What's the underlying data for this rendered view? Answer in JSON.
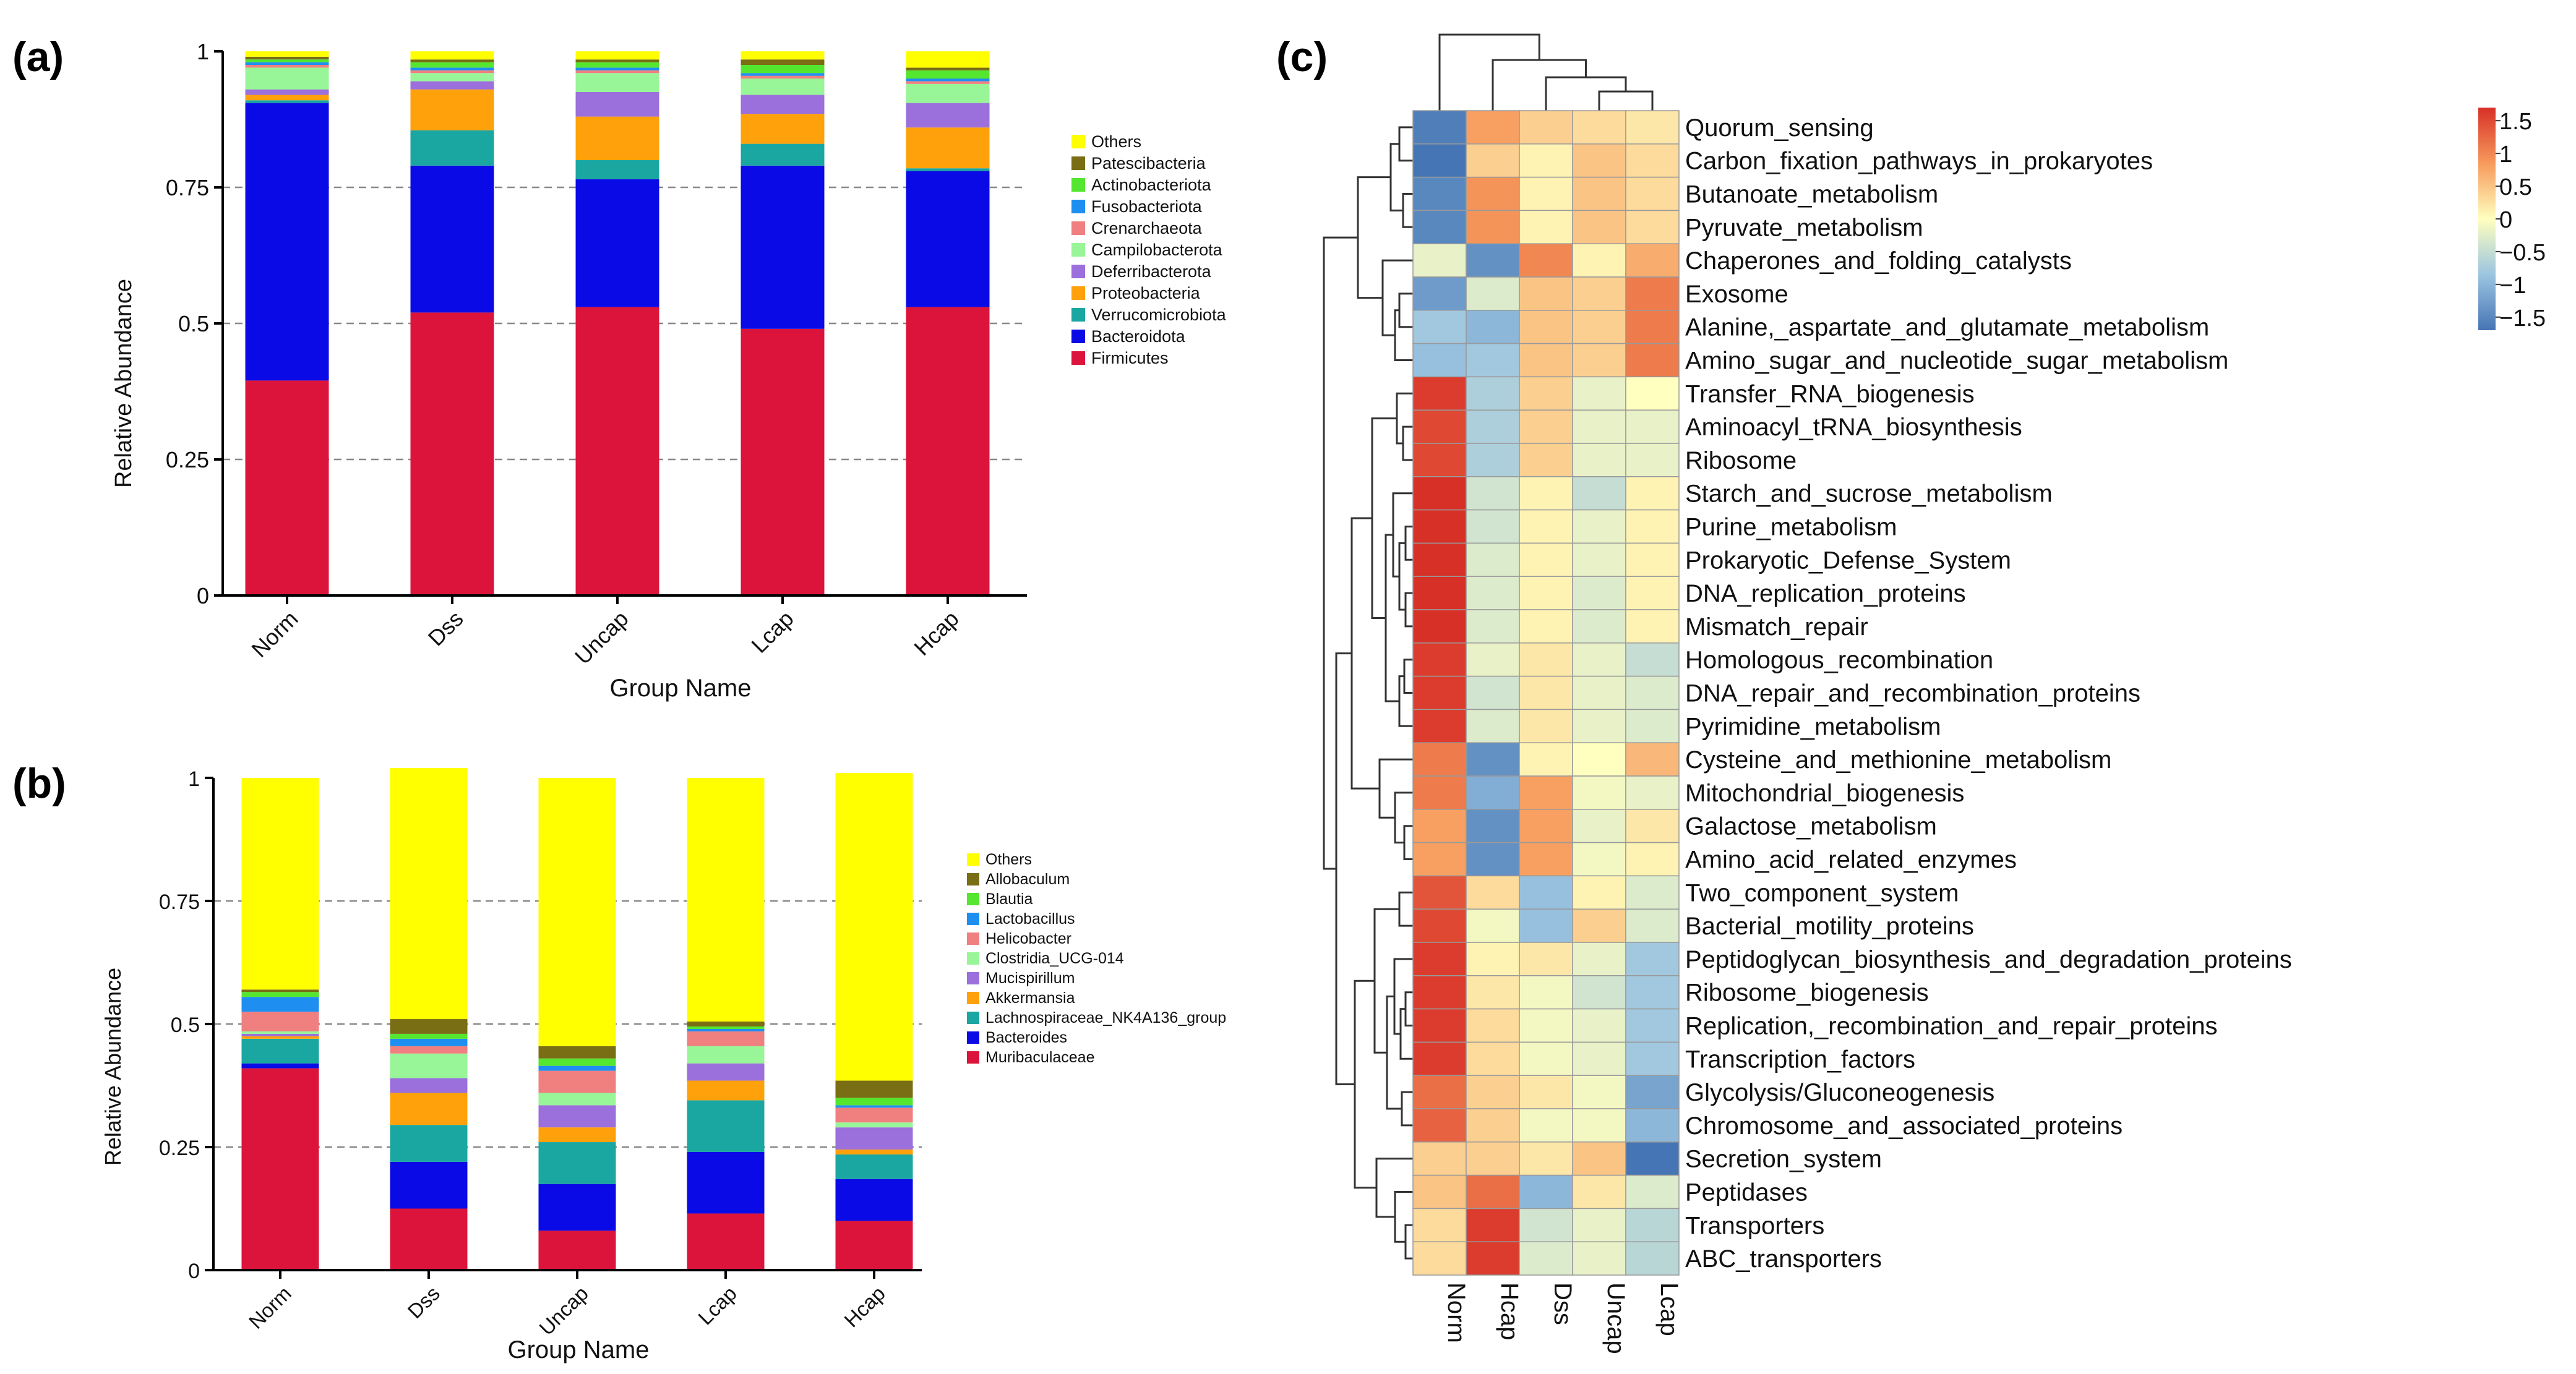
{
  "figure_colors": {
    "Others": "#ffff00",
    "Patescibacteria": "#7a6e14",
    "Actinobacteriota": "#55e62f",
    "Fusobacteriota": "#1e8ff0",
    "Crenarchaeota": "#f08080",
    "Campilobacterota": "#98f598",
    "Deferribacterota": "#9b6fdc",
    "Proteobacteria": "#ffa10a",
    "Verrucomicrobiota": "#1aa7a1",
    "Bacteroidota": "#0a0ae6",
    "Firmicutes": "#dc143c",
    "Allobaculum": "#7a6e14",
    "Blautia": "#55e62f",
    "Lactobacillus": "#1e8ff0",
    "Helicobacter": "#f08080",
    "Clostridia_UCG-014": "#98f598",
    "Mucispirillum": "#9b6fdc",
    "Akkermansia": "#ffa10a",
    "Lachnospiraceae_NK4A136_group": "#1aa7a1",
    "Bacteroides": "#0a0ae6",
    "Muribaculaceae": "#dc143c"
  },
  "chart_data": [
    {
      "panel_label": "(a)",
      "type": "bar",
      "stacked": true,
      "xlabel": "Group Name",
      "ylabel": "Relative Abundance",
      "ylim": [
        0,
        1
      ],
      "y_ticks": [
        "0",
        "0.25",
        "0.5",
        "0.75",
        "1"
      ],
      "grid": "dashed at 0.25, 0.5, 0.75",
      "legend_position": "right",
      "categories": [
        "Norm",
        "Dss",
        "Uncap",
        "Lcap",
        "Hcap"
      ],
      "series": [
        {
          "name": "Firmicutes",
          "values": [
            0.395,
            0.52,
            0.53,
            0.49,
            0.53
          ]
        },
        {
          "name": "Bacteroidota",
          "values": [
            0.51,
            0.27,
            0.235,
            0.3,
            0.25
          ]
        },
        {
          "name": "Verrucomicrobiota",
          "values": [
            0.005,
            0.065,
            0.035,
            0.04,
            0.005
          ]
        },
        {
          "name": "Proteobacteria",
          "values": [
            0.01,
            0.075,
            0.08,
            0.055,
            0.075
          ]
        },
        {
          "name": "Deferribacterota",
          "values": [
            0.01,
            0.015,
            0.045,
            0.035,
            0.045
          ]
        },
        {
          "name": "Campilobacterota",
          "values": [
            0.04,
            0.015,
            0.035,
            0.03,
            0.035
          ]
        },
        {
          "name": "Crenarchaeota",
          "values": [
            0.005,
            0.005,
            0.005,
            0.005,
            0.005
          ]
        },
        {
          "name": "Fusobacteriota",
          "values": [
            0.005,
            0.005,
            0.005,
            0.005,
            0.005
          ]
        },
        {
          "name": "Actinobacteriota",
          "values": [
            0.005,
            0.01,
            0.01,
            0.015,
            0.015
          ]
        },
        {
          "name": "Patescibacteria",
          "values": [
            0.005,
            0.005,
            0.005,
            0.01,
            0.005
          ]
        },
        {
          "name": "Others",
          "values": [
            0.01,
            0.015,
            0.015,
            0.015,
            0.03
          ]
        }
      ],
      "legend": [
        "Others",
        "Patescibacteria",
        "Actinobacteriota",
        "Fusobacteriota",
        "Crenarchaeota",
        "Campilobacterota",
        "Deferribacterota",
        "Proteobacteria",
        "Verrucomicrobiota",
        "Bacteroidota",
        "Firmicutes"
      ]
    },
    {
      "panel_label": "(b)",
      "type": "bar",
      "stacked": true,
      "xlabel": "Group Name",
      "ylabel": "Relative Abundance",
      "ylim": [
        0,
        1
      ],
      "y_ticks": [
        "0",
        "0.25",
        "0.5",
        "0.75",
        "1"
      ],
      "grid": "dashed at 0.25, 0.5, 0.75",
      "legend_position": "right",
      "categories": [
        "Norm",
        "Dss",
        "Uncap",
        "Lcap",
        "Hcap"
      ],
      "series": [
        {
          "name": "Muribaculaceae",
          "values": [
            0.41,
            0.125,
            0.08,
            0.115,
            0.1
          ]
        },
        {
          "name": "Bacteroides",
          "values": [
            0.01,
            0.095,
            0.095,
            0.125,
            0.085
          ]
        },
        {
          "name": "Lachnospiraceae_NK4A136_group",
          "values": [
            0.05,
            0.075,
            0.085,
            0.105,
            0.05
          ]
        },
        {
          "name": "Akkermansia",
          "values": [
            0.005,
            0.065,
            0.03,
            0.04,
            0.01
          ]
        },
        {
          "name": "Mucispirillum",
          "values": [
            0.005,
            0.03,
            0.045,
            0.035,
            0.045
          ]
        },
        {
          "name": "Clostridia_UCG-014",
          "values": [
            0.005,
            0.05,
            0.025,
            0.035,
            0.01
          ]
        },
        {
          "name": "Helicobacter",
          "values": [
            0.04,
            0.015,
            0.045,
            0.03,
            0.03
          ]
        },
        {
          "name": "Lactobacillus",
          "values": [
            0.03,
            0.015,
            0.01,
            0.005,
            0.005
          ]
        },
        {
          "name": "Blautia",
          "values": [
            0.01,
            0.01,
            0.015,
            0.005,
            0.015
          ]
        },
        {
          "name": "Allobaculum",
          "values": [
            0.005,
            0.03,
            0.025,
            0.01,
            0.035
          ]
        },
        {
          "name": "Others",
          "values": [
            0.43,
            0.51,
            0.545,
            0.495,
            0.625
          ]
        }
      ],
      "legend": [
        "Others",
        "Allobaculum",
        "Blautia",
        "Lactobacillus",
        "Helicobacter",
        "Clostridia_UCG-014",
        "Mucispirillum",
        "Akkermansia",
        "Lachnospiraceae_NK4A136_group",
        "Bacteroides",
        "Muribaculaceae"
      ]
    },
    {
      "panel_label": "(c)",
      "type": "heatmap",
      "columns": [
        "Norm",
        "Hcap",
        "Dss",
        "Uncap",
        "Lcap"
      ],
      "rows": [
        "Quorum_sensing",
        "Carbon_fixation_pathways_in_prokaryotes",
        "Butanoate_metabolism",
        "Pyruvate_metabolism",
        "Chaperones_and_folding_catalysts",
        "Exosome",
        "Alanine,_aspartate_and_glutamate_metabolism",
        "Amino_sugar_and_nucleotide_sugar_metabolism",
        "Transfer_RNA_biogenesis",
        "Aminoacyl_tRNA_biosynthesis",
        "Ribosome",
        "Starch_and_sucrose_metabolism",
        "Purine_metabolism",
        "Prokaryotic_Defense_System",
        "DNA_replication_proteins",
        "Mismatch_repair",
        "Homologous_recombination",
        "DNA_repair_and_recombination_proteins",
        "Pyrimidine_metabolism",
        "Cysteine_and_methionine_metabolism",
        "Mitochondrial_biogenesis",
        "Galactose_metabolism",
        "Amino_acid_related_enzymes",
        "Two_component_system",
        "Bacterial_motility_proteins",
        "Peptidoglycan_biosynthesis_and_degradation_proteins",
        "Ribosome_biogenesis",
        "Replication,_recombination_and_repair_proteins",
        "Transcription_factors",
        "Glycolysis/Gluconeogenesis",
        "Chromosome_and_associated_proteins",
        "Secretion_system",
        "Peptidases",
        "Transporters",
        "ABC_transporters"
      ],
      "values": [
        [
          -1.6,
          0.8,
          0.4,
          0.3,
          0.2
        ],
        [
          -1.7,
          0.4,
          0.1,
          0.5,
          0.3
        ],
        [
          -1.5,
          0.9,
          0.1,
          0.5,
          0.3
        ],
        [
          -1.5,
          0.9,
          0.1,
          0.5,
          0.3
        ],
        [
          -0.2,
          -1.4,
          1.0,
          0.1,
          0.7
        ],
        [
          -1.3,
          -0.3,
          0.5,
          0.4,
          1.1
        ],
        [
          -0.8,
          -1.0,
          0.5,
          0.4,
          1.1
        ],
        [
          -0.9,
          -0.8,
          0.5,
          0.4,
          1.1
        ],
        [
          1.6,
          -0.7,
          0.4,
          -0.2,
          0.0
        ],
        [
          1.5,
          -0.7,
          0.4,
          -0.2,
          -0.2
        ],
        [
          1.5,
          -0.7,
          0.4,
          -0.2,
          -0.2
        ],
        [
          1.7,
          -0.4,
          0.1,
          -0.5,
          0.1
        ],
        [
          1.7,
          -0.4,
          0.1,
          -0.2,
          0.1
        ],
        [
          1.7,
          -0.3,
          0.1,
          -0.2,
          0.1
        ],
        [
          1.7,
          -0.3,
          0.1,
          -0.3,
          0.1
        ],
        [
          1.7,
          -0.3,
          0.1,
          -0.3,
          0.1
        ],
        [
          1.6,
          -0.2,
          0.2,
          -0.2,
          -0.5
        ],
        [
          1.6,
          -0.4,
          0.2,
          -0.2,
          -0.3
        ],
        [
          1.6,
          -0.3,
          0.2,
          -0.2,
          -0.3
        ],
        [
          1.1,
          -1.4,
          0.1,
          0.0,
          0.6
        ],
        [
          1.1,
          -1.1,
          0.8,
          -0.1,
          -0.2
        ],
        [
          0.8,
          -1.4,
          0.8,
          -0.2,
          0.2
        ],
        [
          0.8,
          -1.4,
          0.8,
          -0.1,
          0.1
        ],
        [
          1.4,
          0.3,
          -0.9,
          0.1,
          -0.3
        ],
        [
          1.5,
          -0.1,
          -0.9,
          0.4,
          -0.3
        ],
        [
          1.6,
          0.1,
          0.2,
          -0.2,
          -0.8
        ],
        [
          1.6,
          0.2,
          -0.1,
          -0.4,
          -0.8
        ],
        [
          1.6,
          0.3,
          -0.1,
          -0.2,
          -0.8
        ],
        [
          1.6,
          0.3,
          -0.1,
          -0.2,
          -0.8
        ],
        [
          1.2,
          0.4,
          0.2,
          -0.1,
          -1.2
        ],
        [
          1.3,
          0.4,
          -0.1,
          -0.1,
          -1.0
        ],
        [
          0.4,
          0.4,
          0.2,
          0.5,
          -1.7
        ],
        [
          0.5,
          1.2,
          -1.0,
          0.2,
          -0.3
        ],
        [
          0.3,
          1.6,
          -0.4,
          -0.2,
          -0.6
        ],
        [
          0.3,
          1.6,
          -0.3,
          -0.2,
          -0.6
        ]
      ],
      "colorbar": {
        "range": [
          -1.7,
          1.7
        ],
        "ticks": [
          "1.5",
          "1",
          "0.5",
          "0",
          "−0.5",
          "−1",
          "−1.5"
        ],
        "tick_values": [
          1.5,
          1,
          0.5,
          0,
          -0.5,
          -1,
          -1.5
        ]
      },
      "dendrograms": "row dendrogram on left, column dendrogram on top"
    }
  ]
}
